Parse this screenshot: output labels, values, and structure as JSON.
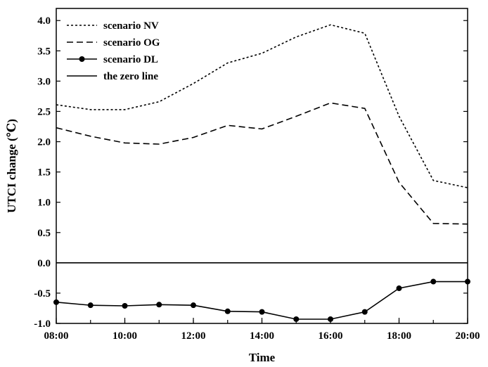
{
  "chart_data": {
    "type": "line",
    "title": "",
    "xlabel": "Time",
    "ylabel": "UTCI change (℃)",
    "x": [
      8,
      9,
      10,
      11,
      12,
      13,
      14,
      15,
      16,
      17,
      18,
      19,
      20
    ],
    "xlim": [
      8,
      20
    ],
    "ylim": [
      -1.0,
      4.2
    ],
    "x_ticks": [
      {
        "value": 8,
        "label": "08:00"
      },
      {
        "value": 10,
        "label": "10:00"
      },
      {
        "value": 12,
        "label": "12:00"
      },
      {
        "value": 14,
        "label": "14:00"
      },
      {
        "value": 16,
        "label": "16:00"
      },
      {
        "value": 18,
        "label": "18:00"
      },
      {
        "value": 20,
        "label": "20:00"
      }
    ],
    "y_ticks": [
      {
        "value": 4.0,
        "label": "4.0"
      },
      {
        "value": 3.5,
        "label": "3.5"
      },
      {
        "value": 3.0,
        "label": "3.0"
      },
      {
        "value": 2.5,
        "label": "2.5"
      },
      {
        "value": 2.0,
        "label": "2.0"
      },
      {
        "value": 1.5,
        "label": "1.5"
      },
      {
        "value": 1.0,
        "label": "1.0"
      },
      {
        "value": 0.5,
        "label": "0.5"
      },
      {
        "value": 0.0,
        "label": "0.0"
      },
      {
        "value": -0.5,
        "label": "-0.5"
      },
      {
        "value": -1.0,
        "label": "-1.0"
      }
    ],
    "grid": false,
    "legend_position": "top-left",
    "series": [
      {
        "name": "scenario NV",
        "style": "dotted",
        "values": [
          2.61,
          2.53,
          2.53,
          2.66,
          2.96,
          3.3,
          3.46,
          3.73,
          3.93,
          3.79,
          2.42,
          1.36,
          1.24
        ]
      },
      {
        "name": "scenario OG",
        "style": "dashed",
        "values": [
          2.23,
          2.09,
          1.98,
          1.96,
          2.07,
          2.27,
          2.21,
          2.42,
          2.64,
          2.55,
          1.33,
          0.65,
          0.64
        ]
      },
      {
        "name": "scenario DL",
        "style": "solid-markers",
        "values": [
          -0.65,
          -0.7,
          -0.71,
          -0.69,
          -0.7,
          -0.8,
          -0.81,
          -0.93,
          -0.93,
          -0.81,
          -0.42,
          -0.31,
          -0.31
        ]
      },
      {
        "name": "the zero line",
        "style": "solid",
        "values": [
          0,
          0,
          0,
          0,
          0,
          0,
          0,
          0,
          0,
          0,
          0,
          0,
          0
        ]
      }
    ],
    "colors": {
      "line": "#000000",
      "background": "#ffffff"
    }
  }
}
